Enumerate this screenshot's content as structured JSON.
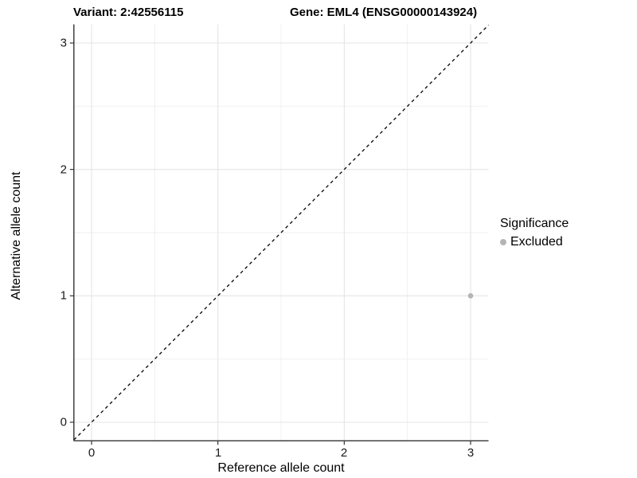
{
  "titles": {
    "variant": "Variant: 2:42556115",
    "gene": "Gene: EML4 (ENSG00000143924)"
  },
  "chart_data": {
    "type": "scatter",
    "title": "Variant: 2:42556115        Gene: EML4 (ENSG00000143924)",
    "xlabel": "Reference allele count",
    "ylabel": "Alternative allele count",
    "x_ticks": [
      0,
      1,
      2,
      3
    ],
    "y_ticks": [
      0,
      1,
      2,
      3
    ],
    "xlim": [
      -0.14,
      3.142
    ],
    "ylim": [
      -0.147,
      3.147
    ],
    "grid": {
      "major": true,
      "minor": true
    },
    "points": [
      {
        "x": 3,
        "y": 1,
        "series": "Excluded"
      }
    ],
    "identity_line": {
      "slope": 1,
      "intercept": 0,
      "style": "dashed"
    },
    "legend": {
      "title": "Significance",
      "position": "right",
      "entries": [
        {
          "label": "Excluded",
          "color": "#b4b4b4"
        }
      ]
    },
    "colors": {
      "background": "#ffffff",
      "grid_major": "#e4e4e4",
      "grid_minor": "#efefef",
      "axis_line": "#333333",
      "tick_mark": "#333333",
      "identity_line": "#000000",
      "point": "#b4b4b4",
      "text": "#000000"
    }
  }
}
